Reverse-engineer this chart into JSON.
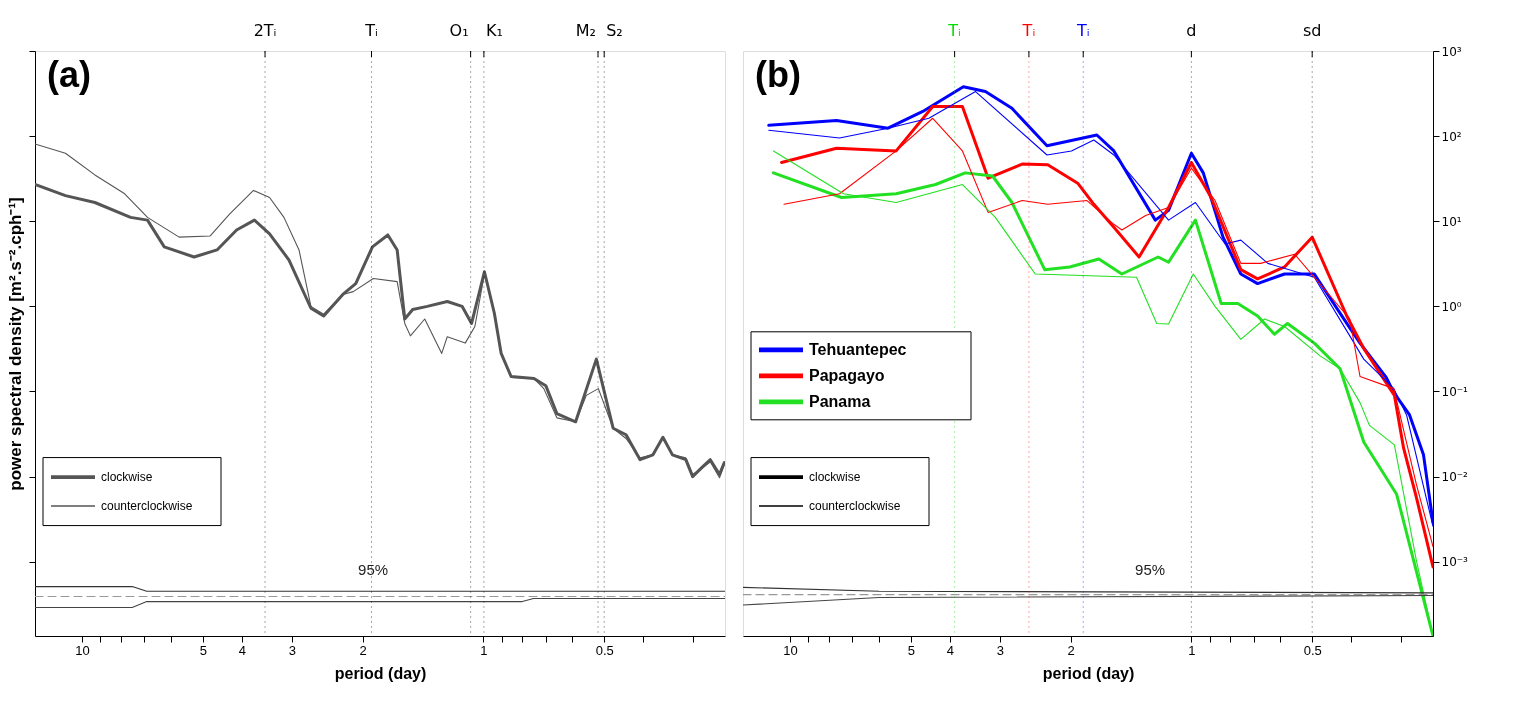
{
  "chart_data": [
    {
      "type": "line",
      "title": "(a)",
      "xlabel": "period (day)",
      "ylabel": "power spectral density [m².s⁻².cph⁻¹]",
      "xlim": [
        13.1,
        0.25
      ],
      "xticks": [
        10,
        {
          "value": 9,
          "label": null
        },
        {
          "value": 8,
          "label": null
        },
        {
          "value": 7,
          "label": null
        },
        {
          "value": 6,
          "label": null
        },
        5,
        4,
        3,
        2,
        1,
        {
          "value": 0.9,
          "label": null
        },
        {
          "value": 0.8,
          "label": null
        },
        {
          "value": 0.7,
          "label": null
        },
        {
          "value": 0.6,
          "label": null
        },
        0.5,
        {
          "value": 0.4,
          "label": null
        },
        {
          "value": 0.3,
          "label": null
        }
      ],
      "ylim": [
        0.000134,
        1000
      ],
      "yticks": [
        {
          "value": 1000,
          "label": null
        },
        {
          "value": 100,
          "label": null
        },
        {
          "value": 10,
          "label": null
        },
        {
          "value": 1,
          "label": null
        },
        {
          "value": 0.1,
          "label": null
        },
        {
          "value": 0.01,
          "label": null
        },
        {
          "value": 0.001,
          "label": null
        }
      ],
      "log": "xy",
      "tick_labels": "x",
      "grid": false,
      "legend": "bottom left",
      "ref_lines": [
        {
          "axis": "x",
          "value": 3.5,
          "label": "2Tᵢ",
          "line_style": "dotted",
          "color": "#000000"
        },
        {
          "axis": "x",
          "value": 1.9,
          "label": "Tᵢ",
          "line_style": "dotted",
          "color": "#000000"
        },
        {
          "axis": "x",
          "value": 1.076,
          "label": "O₁",
          "line_style": "dotted",
          "color": "#000000"
        },
        {
          "axis": "x",
          "value": 0.997,
          "label": "K₁",
          "line_style": "dotted",
          "color": "#000000"
        },
        {
          "axis": "x",
          "value": 0.518,
          "label": "M₂",
          "line_style": "dotted",
          "color": "#000000"
        },
        {
          "axis": "x",
          "value": 0.5,
          "label": "S₂",
          "line_style": "dotted",
          "color": "#000000"
        }
      ],
      "annotations": [
        "95%"
      ],
      "series": [
        {
          "name": "clockwise",
          "color": "#555555",
          "x": [
            13.1,
            11.0,
            9.29,
            7.57,
            6.87,
            6.24,
            5.26,
            4.61,
            4.12,
            3.72,
            3.41,
            3.05,
            2.69,
            2.5,
            2.24,
            2.08,
            1.89,
            1.73,
            1.64,
            1.57,
            1.5,
            1.38,
            1.23,
            1.13,
            1.07,
            0.994,
            0.939,
            0.903,
            0.853,
            0.748,
            0.699,
            0.656,
            0.589,
            0.523,
            0.475,
            0.441,
            0.407,
            0.378,
            0.357,
            0.338,
            0.313,
            0.301,
            0.284,
            0.272,
            0.258,
            0.251
          ],
          "values": [
            27,
            20,
            16.6,
            11.1,
            10.3,
            5.0,
            3.8,
            4.6,
            7.9,
            10.3,
            7.1,
            3.5,
            0.95,
            0.77,
            1.38,
            1.85,
            5.0,
            6.9,
            4.6,
            0.71,
            0.92,
            1.0,
            1.14,
            1.0,
            0.63,
            2.55,
            0.83,
            0.28,
            0.15,
            0.142,
            0.117,
            0.055,
            0.044,
            0.24,
            0.037,
            0.031,
            0.0158,
            0.018,
            0.029,
            0.018,
            0.0158,
            0.01,
            0.0131,
            0.0158,
            0.0106,
            0.0146
          ]
        },
        {
          "name": "counterclockwise",
          "color": "#555555",
          "x": [
            13.1,
            11.0,
            9.29,
            7.83,
            6.87,
            5.73,
            4.8,
            4.29,
            3.74,
            3.41,
            3.14,
            2.88,
            2.69,
            2.5,
            2.24,
            2.11,
            1.88,
            1.64,
            1.57,
            1.52,
            1.4,
            1.27,
            1.23,
            1.11,
            1.05,
            0.994,
            0.939,
            0.903,
            0.853,
            0.748,
            0.707,
            0.656,
            0.589,
            0.554,
            0.517,
            0.475,
            0.441,
            0.407,
            0.378,
            0.357,
            0.338,
            0.313,
            0.301,
            0.284,
            0.272,
            0.258,
            0.251
          ],
          "values": [
            81,
            63,
            35,
            21,
            11.1,
            6.5,
            6.7,
            12.1,
            23,
            19,
            11.1,
            4.6,
            1.0,
            0.81,
            1.38,
            1.49,
            2.12,
            1.95,
            0.63,
            0.45,
            0.71,
            0.28,
            0.44,
            0.37,
            0.58,
            2.42,
            0.83,
            0.28,
            0.146,
            0.142,
            0.108,
            0.049,
            0.044,
            0.09,
            0.108,
            0.037,
            0.028,
            0.0166,
            0.018,
            0.029,
            0.018,
            0.0166,
            0.0106,
            0.0127,
            0.0149,
            0.0097,
            0.0138
          ]
        },
        {
          "color": "#333333",
          "x": [
            13.1,
            7.5,
            6.9,
            0.25
          ],
          "values": [
            0.00051,
            0.00051,
            0.00045,
            0.00045
          ]
        },
        {
          "color": "#999999",
          "line_style": "dashed",
          "x": [
            13.1,
            0.25
          ],
          "values": [
            0.00039,
            0.00039
          ]
        },
        {
          "color": "#444444",
          "x": [
            13.1,
            7.5,
            6.9,
            0.8,
            0.75,
            0.25
          ],
          "values": [
            0.00029,
            0.00029,
            0.00034,
            0.00034,
            0.00037,
            0.00037
          ]
        }
      ]
    },
    {
      "type": "line",
      "title": "(b)",
      "xlabel": "period (day)",
      "xlim": [
        13.1,
        0.25
      ],
      "xticks": [
        10,
        {
          "value": 9,
          "label": null
        },
        {
          "value": 8,
          "label": null
        },
        {
          "value": 7,
          "label": null
        },
        {
          "value": 6,
          "label": null
        },
        5,
        4,
        3,
        2,
        1,
        {
          "value": 0.9,
          "label": null
        },
        {
          "value": 0.8,
          "label": null
        },
        {
          "value": 0.7,
          "label": null
        },
        {
          "value": 0.6,
          "label": null
        },
        0.5,
        {
          "value": 0.4,
          "label": null
        },
        {
          "value": 0.3,
          "label": null
        }
      ],
      "ylim": [
        0.000134,
        1000
      ],
      "yticks": [
        {
          "value": 1000,
          "label": "10³"
        },
        {
          "value": 100,
          "label": "10²"
        },
        {
          "value": 10,
          "label": "10¹"
        },
        {
          "value": 1,
          "label": "10⁰"
        },
        {
          "value": 0.1,
          "label": "10⁻¹"
        },
        {
          "value": 0.01,
          "label": "10⁻²"
        },
        {
          "value": 0.001,
          "label": "10⁻³"
        }
      ],
      "log": "xy",
      "grid": false,
      "legend": "left",
      "ref_lines": [
        {
          "axis": "x",
          "value": 3.89,
          "label": "Tᵢ",
          "line_style": "dotted",
          "color": "#00dd00"
        },
        {
          "axis": "x",
          "value": 2.54,
          "label": "Tᵢ",
          "line_style": "dotted",
          "color": "#ff0000"
        },
        {
          "axis": "x",
          "value": 1.86,
          "label": "Tᵢ",
          "line_style": "dotted",
          "color": "#0000ff"
        },
        {
          "axis": "x",
          "value": 1,
          "label": "d",
          "line_style": "dotted",
          "color": "#000000"
        },
        {
          "axis": "x",
          "value": 0.5,
          "label": "sd",
          "line_style": "dotted",
          "color": "#000000"
        }
      ],
      "annotations": [
        "95%"
      ],
      "series": [
        {
          "name": "Tehuantepec",
          "color": "#0000ff",
          "x": [
            11.3,
            7.66,
            5.7,
            4.67,
            3.7,
            3.26,
            2.8,
            2.29,
            1.72,
            1.56,
            1.23,
            1.14,
            1.0,
            0.934,
            0.834,
            0.753,
            0.684,
            0.586,
            0.494,
            0.41,
            0.38,
            0.327,
            0.313,
            0.286,
            0.264,
            0.25
          ],
          "values": [
            134,
            153,
            124,
            195,
            381,
            334,
            212,
            77,
            103,
            67,
            10.3,
            13.4,
            63,
            37,
            6.5,
            2.4,
            1.85,
            2.4,
            2.4,
            0.63,
            0.37,
            0.146,
            0.097,
            0.053,
            0.018,
            0.0029
          ]
        },
        {
          "name": "Papagayo",
          "color": "#ff0000",
          "x": [
            10.5,
            7.66,
            5.44,
            4.41,
            3.72,
            3.21,
            2.64,
            2.28,
            1.92,
            1.75,
            1.56,
            1.35,
            1.14,
            1.0,
            0.893,
            0.753,
            0.684,
            0.586,
            0.5,
            0.41,
            0.372,
            0.312,
            0.296,
            0.275,
            0.25
          ],
          "values": [
            49,
            72,
            67,
            223,
            223,
            32,
            47,
            46,
            28,
            15.8,
            8.5,
            3.8,
            14.5,
            49,
            19,
            2.7,
            2.1,
            2.9,
            6.5,
            0.77,
            0.32,
            0.09,
            0.0217,
            0.0057,
            0.00087
          ]
        },
        {
          "name": "Panama",
          "color": "#22e022",
          "x": [
            11.0,
            7.44,
            5.44,
            4.34,
            3.66,
            3.13,
            2.8,
            2.32,
            2.01,
            1.7,
            1.49,
            1.21,
            1.14,
            0.977,
            0.843,
            0.766,
            0.684,
            0.621,
            0.576,
            0.494,
            0.426,
            0.372,
            0.308,
            0.25
          ],
          "values": [
            37,
            19,
            21,
            27,
            37,
            34,
            16.6,
            2.7,
            2.9,
            3.6,
            2.4,
            3.8,
            3.3,
            10.3,
            1.08,
            1.08,
            0.77,
            0.47,
            0.63,
            0.37,
            0.185,
            0.0255,
            0.0062,
            0.000134
          ]
        },
        {
          "color": "#0000ff",
          "x": [
            11.3,
            7.53,
            5.7,
            4.51,
            3.45,
            2.29,
            1.99,
            1.75,
            1.56,
            1.14,
            0.977,
            0.824,
            0.753,
            0.645,
            0.494,
            0.403,
            0.372,
            0.313,
            0.291,
            0.25
          ],
          "values": [
            117,
            95,
            124,
            162,
            334,
            60,
            67,
            90,
            60,
            10.3,
            16.6,
            5.4,
            6.0,
            3.2,
            2.2,
            0.45,
            0.24,
            0.108,
            0.053,
            0.0026
          ]
        },
        {
          "color": "#ff0000",
          "x": [
            10.35,
            7.53,
            5.44,
            4.41,
            3.72,
            3.21,
            2.64,
            2.28,
            1.82,
            1.56,
            1.49,
            1.3,
            1.14,
            1.0,
            0.873,
            0.753,
            0.672,
            0.553,
            0.403,
            0.38,
            0.313,
            0.275,
            0.25
          ],
          "values": [
            15.8,
            21,
            67,
            162,
            67,
            12.7,
            17.5,
            15.8,
            17.5,
            9.2,
            7.9,
            11.7,
            14.5,
            42,
            17.5,
            3.2,
            3.2,
            4.1,
            0.71,
            0.15,
            0.108,
            0.0081,
            0.0015
          ]
        },
        {
          "color": "#22e022",
          "x": [
            11.0,
            7.36,
            5.44,
            3.72,
            3.08,
            2.45,
            1.37,
            1.22,
            1.14,
            0.989,
            0.873,
            0.753,
            0.657,
            0.586,
            0.477,
            0.426,
            0.38,
            0.36,
            0.312,
            0.275,
            0.25
          ],
          "values": [
            67,
            21,
            16.6,
            27,
            11.1,
            2.4,
            2.2,
            0.63,
            0.62,
            2.4,
            1.0,
            0.41,
            0.71,
            0.58,
            0.26,
            0.185,
            0.074,
            0.04,
            0.0236,
            0.00103,
            0.000134
          ]
        },
        {
          "color": "#333333",
          "x": [
            13.1,
            6,
            0.25
          ],
          "values": [
            0.0005,
            0.00045,
            0.00043
          ]
        },
        {
          "color": "#999999",
          "line_style": "dashed",
          "x": [
            13.1,
            0.25
          ],
          "values": [
            0.00041,
            0.00041
          ]
        },
        {
          "color": "#444444",
          "x": [
            13.1,
            6,
            0.25
          ],
          "values": [
            0.00031,
            0.00038,
            0.0004
          ]
        },
        {
          "name": "clockwise",
          "color": "#000000"
        },
        {
          "name": "counterclockwise",
          "color": "#000000"
        }
      ]
    }
  ]
}
